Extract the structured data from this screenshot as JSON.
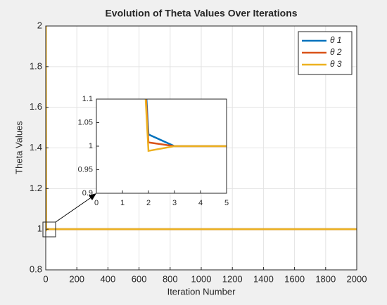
{
  "chart_data": {
    "type": "line",
    "title": "Evolution of Theta Values Over Iterations",
    "xlabel": "Iteration Number",
    "ylabel": "Theta Values",
    "x": [
      1,
      2,
      3,
      4,
      5,
      2000
    ],
    "series": [
      {
        "name": "θ 1",
        "color": "#0072bd",
        "values": [
          2,
          1.025,
          1,
          1,
          1,
          1
        ]
      },
      {
        "name": "θ 2",
        "color": "#d95319",
        "values": [
          2,
          1.008,
          1,
          1,
          1,
          1
        ]
      },
      {
        "name": "θ 3",
        "color": "#edb120",
        "values": [
          2,
          0.99,
          1,
          1,
          1,
          1
        ]
      }
    ],
    "xlim": [
      0,
      2000
    ],
    "xticks": [
      0,
      200,
      400,
      600,
      800,
      1000,
      1200,
      1400,
      1600,
      1800,
      2000
    ],
    "ylim": [
      0.8,
      2
    ],
    "yticks": [
      0.8,
      1,
      1.2,
      1.4,
      1.6,
      1.8,
      2
    ],
    "grid": true,
    "legend": "upper right",
    "inset": {
      "xlim": [
        0,
        5
      ],
      "xticks": [
        0,
        1,
        2,
        3,
        4,
        5
      ],
      "ylim": [
        0.9,
        1.1
      ],
      "yticks": [
        0.9,
        0.95,
        1,
        1.05,
        1.1
      ]
    }
  }
}
